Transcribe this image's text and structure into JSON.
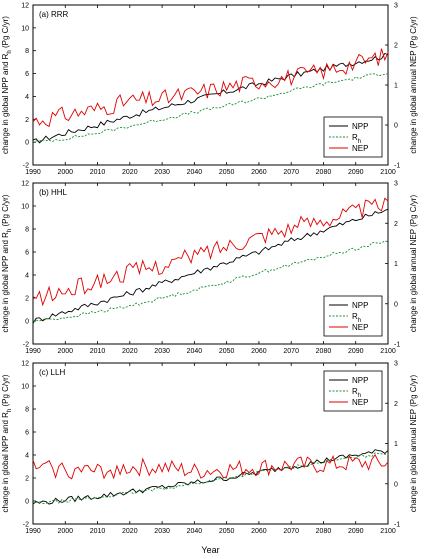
{
  "chart_data": [
    {
      "type": "line",
      "panel_label": "(a) RRR",
      "ylabel_left": "change in global NPP and R_h (Pg C/yr)",
      "ylabel_right": "change in global annual NEP (Pg C/yr)",
      "ylim_left": [
        -2,
        12
      ],
      "ylim_right": [
        -1,
        3
      ],
      "xlim": [
        1990,
        2100
      ],
      "xticks": [
        1990,
        2000,
        2010,
        2020,
        2030,
        2040,
        2050,
        2060,
        2070,
        2080,
        2090,
        2100
      ],
      "yticks_left": [
        -2,
        0,
        2,
        4,
        6,
        8,
        10,
        12
      ],
      "yticks_right": [
        -1,
        0,
        1,
        2,
        3
      ],
      "legend": [
        "NPP",
        "R_h",
        "NEP"
      ],
      "legend_position": "lower-right",
      "series": [
        {
          "name": "NPP",
          "axis": "left",
          "color": "#000000",
          "style": "solid",
          "x": [
            1990,
            2000,
            2010,
            2020,
            2030,
            2040,
            2050,
            2060,
            2070,
            2080,
            2090,
            2100
          ],
          "values": [
            0.0,
            0.8,
            1.5,
            2.3,
            3.0,
            3.7,
            4.4,
            5.1,
            5.8,
            6.4,
            7.0,
            7.6
          ]
        },
        {
          "name": "R_h",
          "axis": "left",
          "color": "#1a8c2e",
          "style": "dotted",
          "x": [
            1990,
            2000,
            2010,
            2020,
            2030,
            2040,
            2050,
            2060,
            2070,
            2080,
            2090,
            2100
          ],
          "values": [
            0.0,
            0.3,
            0.8,
            1.4,
            2.0,
            2.6,
            3.2,
            3.8,
            4.5,
            5.1,
            5.6,
            6.1
          ]
        },
        {
          "name": "NEP",
          "axis": "right",
          "color": "#e00000",
          "style": "solid",
          "x": [
            1990,
            2000,
            2010,
            2020,
            2030,
            2040,
            2050,
            2060,
            2070,
            2080,
            2090,
            2100
          ],
          "values": [
            0.1,
            0.25,
            0.4,
            0.6,
            0.65,
            0.8,
            0.95,
            1.1,
            1.2,
            1.35,
            1.55,
            1.75
          ]
        }
      ]
    },
    {
      "type": "line",
      "panel_label": "(b) HHL",
      "ylabel_left": "change in global NPP and R_h (Pg C/yr)",
      "ylabel_right": "change in global annual NEP (Pg C/yr)",
      "ylim_left": [
        -2,
        12
      ],
      "ylim_right": [
        -1,
        3
      ],
      "xlim": [
        1990,
        2100
      ],
      "xticks": [
        1990,
        2000,
        2010,
        2020,
        2030,
        2040,
        2050,
        2060,
        2070,
        2080,
        2090,
        2100
      ],
      "yticks_left": [
        -2,
        0,
        2,
        4,
        6,
        8,
        10,
        12
      ],
      "yticks_right": [
        -1,
        0,
        1,
        2,
        3
      ],
      "legend": [
        "NPP",
        "R_h",
        "NEP"
      ],
      "legend_position": "lower-right",
      "series": [
        {
          "name": "NPP",
          "axis": "left",
          "color": "#000000",
          "style": "solid",
          "x": [
            1990,
            2000,
            2010,
            2020,
            2030,
            2040,
            2050,
            2060,
            2070,
            2080,
            2090,
            2100
          ],
          "values": [
            0.0,
            0.8,
            1.6,
            2.4,
            3.3,
            4.2,
            5.1,
            6.0,
            7.0,
            7.9,
            8.8,
            9.7
          ]
        },
        {
          "name": "R_h",
          "axis": "left",
          "color": "#1a8c2e",
          "style": "dotted",
          "x": [
            1990,
            2000,
            2010,
            2020,
            2030,
            2040,
            2050,
            2060,
            2070,
            2080,
            2090,
            2100
          ],
          "values": [
            0.0,
            0.3,
            0.8,
            1.3,
            2.0,
            2.7,
            3.4,
            4.2,
            4.9,
            5.6,
            6.3,
            7.0
          ]
        },
        {
          "name": "NEP",
          "axis": "right",
          "color": "#e00000",
          "style": "solid",
          "x": [
            1990,
            2000,
            2010,
            2020,
            2030,
            2040,
            2050,
            2060,
            2070,
            2080,
            2090,
            2100
          ],
          "values": [
            0.1,
            0.3,
            0.55,
            0.8,
            0.95,
            1.2,
            1.45,
            1.7,
            1.9,
            2.1,
            2.3,
            2.5
          ]
        }
      ]
    },
    {
      "type": "line",
      "panel_label": "(c) LLH",
      "ylabel_left": "change in global NPP and R_h (Pg C/yr)",
      "ylabel_right": "change in global annual NEP (Pg C/yr)",
      "ylim_left": [
        -2,
        12
      ],
      "ylim_right": [
        -1,
        3
      ],
      "xlim": [
        1990,
        2100
      ],
      "xticks": [
        1990,
        2000,
        2010,
        2020,
        2030,
        2040,
        2050,
        2060,
        2070,
        2080,
        2090,
        2100
      ],
      "yticks_left": [
        -2,
        0,
        2,
        4,
        6,
        8,
        10,
        12
      ],
      "yticks_right": [
        -1,
        0,
        1,
        2,
        3
      ],
      "legend": [
        "NPP",
        "R_h",
        "NEP"
      ],
      "legend_position": "upper-right",
      "xlabel": "Year",
      "series": [
        {
          "name": "NPP",
          "axis": "left",
          "color": "#000000",
          "style": "solid",
          "x": [
            1990,
            2000,
            2010,
            2020,
            2030,
            2040,
            2050,
            2060,
            2070,
            2080,
            2090,
            2100
          ],
          "values": [
            -0.2,
            0.1,
            0.4,
            0.8,
            1.2,
            1.6,
            2.0,
            2.5,
            3.0,
            3.5,
            4.0,
            4.4
          ]
        },
        {
          "name": "R_h",
          "axis": "left",
          "color": "#1a8c2e",
          "style": "dotted",
          "x": [
            1990,
            2000,
            2010,
            2020,
            2030,
            2040,
            2050,
            2060,
            2070,
            2080,
            2090,
            2100
          ],
          "values": [
            -0.2,
            0.0,
            0.3,
            0.7,
            1.1,
            1.5,
            2.0,
            2.5,
            2.9,
            3.4,
            3.8,
            4.2
          ]
        },
        {
          "name": "NEP",
          "axis": "right",
          "color": "#e00000",
          "style": "solid",
          "x": [
            1990,
            2000,
            2010,
            2020,
            2030,
            2040,
            2050,
            2060,
            2070,
            2080,
            2090,
            2100
          ],
          "values": [
            0.4,
            0.35,
            0.3,
            0.4,
            0.4,
            0.3,
            0.35,
            0.4,
            0.45,
            0.45,
            0.5,
            0.5
          ]
        }
      ]
    }
  ]
}
